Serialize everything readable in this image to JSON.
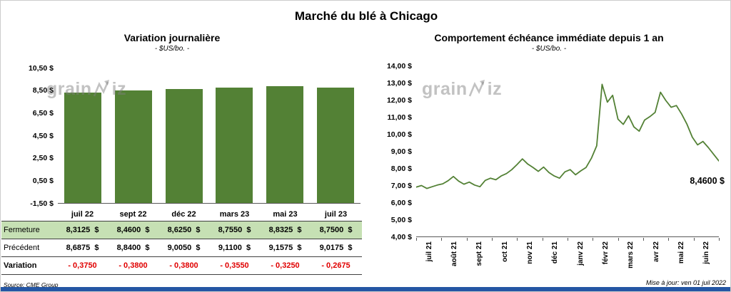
{
  "title": "Marché du blé à Chicago",
  "left_panel": {
    "chart_title": "Variation journalière",
    "chart_subtitle": "- $US/bo. -",
    "y_ticks": [
      "10,50 $",
      "8,50 $",
      "6,50 $",
      "4,50 $",
      "2,50 $",
      "0,50 $",
      "-1,50 $"
    ]
  },
  "right_panel": {
    "chart_title": "Comportement échéance immédiate depuis 1 an",
    "chart_subtitle": "- $US/bo. -",
    "y_ticks": [
      "14,00 $",
      "13,00 $",
      "12,00 $",
      "11,00 $",
      "10,00 $",
      "9,00 $",
      "8,00 $",
      "7,00 $",
      "6,00 $",
      "5,00 $",
      "4,00 $"
    ],
    "x_ticks": [
      "juil 21",
      "août 21",
      "sept 21",
      "oct 21",
      "nov 21",
      "déc 21",
      "janv 22",
      "févr 22",
      "mars 22",
      "avr 22",
      "mai 22",
      "juin 22"
    ],
    "last_point_label": "8,4600 $"
  },
  "chart_data": [
    {
      "type": "bar",
      "title": "Variation journalière",
      "subtitle": "- $US/bo. -",
      "categories": [
        "juil 22",
        "sept 22",
        "déc 22",
        "mars 23",
        "mai 23",
        "juil 23"
      ],
      "values": [
        8.3125,
        8.46,
        8.625,
        8.755,
        8.8325,
        8.75
      ],
      "ylim": [
        -1.5,
        10.5
      ],
      "ytick_step": 2,
      "bar_color": "#538135"
    },
    {
      "type": "line",
      "title": "Comportement échéance immédiate depuis 1 an",
      "subtitle": "- $US/bo. -",
      "x_labels": [
        "juil 21",
        "août 21",
        "sept 21",
        "oct 21",
        "nov 21",
        "déc 21",
        "janv 22",
        "févr 22",
        "mars 22",
        "avr 22",
        "mai 22",
        "juin 22"
      ],
      "values": [
        6.93,
        7.02,
        6.85,
        6.95,
        7.05,
        7.12,
        7.3,
        7.55,
        7.28,
        7.1,
        7.22,
        7.05,
        6.95,
        7.32,
        7.45,
        7.36,
        7.58,
        7.72,
        7.95,
        8.25,
        8.58,
        8.28,
        8.08,
        7.85,
        8.1,
        7.78,
        7.58,
        7.45,
        7.82,
        7.95,
        7.65,
        7.88,
        8.08,
        8.62,
        9.35,
        12.94,
        11.9,
        12.3,
        10.9,
        10.6,
        11.1,
        10.45,
        10.2,
        10.85,
        11.05,
        11.3,
        12.48,
        12.0,
        11.6,
        11.7,
        11.2,
        10.6,
        9.85,
        9.4,
        9.6,
        9.25,
        8.85,
        8.46
      ],
      "ylim": [
        4,
        14
      ],
      "ytick_step": 1,
      "line_color": "#538135",
      "last_value": 8.46,
      "last_value_label": "8,4600 $"
    }
  ],
  "table": {
    "col_headers": [
      "juil 22",
      "sept 22",
      "déc 22",
      "mars 23",
      "mai 23",
      "juil 23"
    ],
    "rows": [
      {
        "label": "Fermeture",
        "values": [
          "8,3125  $",
          "8,4600  $",
          "8,6250  $",
          "8,7550  $",
          "8,8325  $",
          "8,7500  $"
        ]
      },
      {
        "label": "Précédent",
        "values": [
          "8,6875  $",
          "8,8400  $",
          "9,0050  $",
          "9,1100  $",
          "9,1575  $",
          "9,0175  $"
        ]
      },
      {
        "label": "Variation",
        "values": [
          "- 0,3750",
          "- 0,3800",
          "- 0,3800",
          "- 0,3550",
          "- 0,3250",
          "- 0,2675"
        ]
      }
    ]
  },
  "watermark": {
    "prefix": "grain",
    "suffix": "iz"
  },
  "footer": {
    "source": "Source: CME Group",
    "updated": "Mise à jour: ven 01 juil 2022"
  },
  "colors": {
    "green": "#538135",
    "fermeture_row_bg": "#C6E0B4",
    "variation_red": "#E00000",
    "footer_bar_blue": "#2456A4"
  }
}
